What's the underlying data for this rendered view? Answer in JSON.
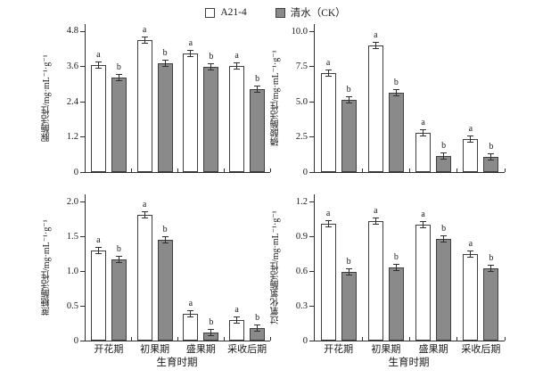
{
  "legend": {
    "items": [
      {
        "label": "A21-4",
        "fill": "#ffffff"
      },
      {
        "label": "清水（CK）",
        "fill": "#8a8a8a"
      }
    ]
  },
  "colors": {
    "axis": "#2f2f2f",
    "bar_border": "#3f3f3f",
    "a21_fill": "#ffffff",
    "ck_fill": "#8a8a8a",
    "text": "#1a1a1a"
  },
  "chart_data": [
    {
      "type": "bar",
      "position": "top-left",
      "ylabel": "脲酶活性/mg·mL⁻¹·g⁻¹",
      "xlabel": "",
      "ylim": [
        0,
        4.8
      ],
      "yticks": [
        "0",
        "1.2",
        "2.4",
        "3.6",
        "4.8"
      ],
      "categories": [
        "开花期",
        "初果期",
        "盛果期",
        "采收后期"
      ],
      "show_x_labels": false,
      "series": [
        {
          "name": "A21-4",
          "values": [
            3.65,
            4.5,
            4.05,
            3.62
          ],
          "sig": [
            "a",
            "a",
            "a",
            "a"
          ]
        },
        {
          "name": "清水（CK）",
          "values": [
            3.22,
            3.72,
            3.58,
            2.82
          ],
          "sig": [
            "b",
            "b",
            "b",
            "b"
          ]
        }
      ]
    },
    {
      "type": "bar",
      "position": "top-right",
      "ylabel": "磷酸酶活性/mg·mL⁻¹·g⁻¹",
      "xlabel": "",
      "ylim": [
        0,
        10.0
      ],
      "yticks": [
        "0",
        "2.5",
        "5.0",
        "7.5",
        "10.0"
      ],
      "categories": [
        "开花期",
        "初果期",
        "盛果期",
        "采收后期"
      ],
      "show_x_labels": false,
      "series": [
        {
          "name": "A21-4",
          "values": [
            7.0,
            9.0,
            2.8,
            2.35
          ],
          "sig": [
            "a",
            "a",
            "a",
            "a"
          ]
        },
        {
          "name": "清水（CK）",
          "values": [
            5.15,
            5.65,
            1.15,
            1.1
          ],
          "sig": [
            "b",
            "b",
            "b",
            "b"
          ]
        }
      ]
    },
    {
      "type": "bar",
      "position": "bottom-left",
      "ylabel": "蔗糖酶活性/mg·mL⁻¹·g⁻¹",
      "xlabel": "生育时期",
      "ylim": [
        0,
        2.0
      ],
      "yticks": [
        "0",
        "0.5",
        "1.0",
        "1.5",
        "2.0"
      ],
      "categories": [
        "开花期",
        "初果期",
        "盛果期",
        "采收后期"
      ],
      "show_x_labels": true,
      "series": [
        {
          "name": "A21-4",
          "values": [
            1.29,
            1.81,
            0.38,
            0.29
          ],
          "sig": [
            "a",
            "a",
            "a",
            "a"
          ]
        },
        {
          "name": "清水（CK）",
          "values": [
            1.17,
            1.45,
            0.12,
            0.18
          ],
          "sig": [
            "b",
            "b",
            "b",
            "b"
          ]
        }
      ]
    },
    {
      "type": "bar",
      "position": "bottom-right",
      "ylabel": "过氧化氢酶活性/mg·mL⁻¹·g⁻¹",
      "xlabel": "生育时期",
      "ylim": [
        0,
        1.2
      ],
      "yticks": [
        "0",
        "0.3",
        "0.6",
        "0.9",
        "1.2"
      ],
      "categories": [
        "开花期",
        "初果期",
        "盛果期",
        "采收后期"
      ],
      "show_x_labels": true,
      "series": [
        {
          "name": "A21-4",
          "values": [
            1.01,
            1.03,
            1.0,
            0.75
          ],
          "sig": [
            "a",
            "a",
            "a",
            "a"
          ]
        },
        {
          "name": "清水（CK）",
          "values": [
            0.59,
            0.63,
            0.88,
            0.62
          ],
          "sig": [
            "b",
            "b",
            "b",
            "b"
          ]
        }
      ]
    }
  ]
}
